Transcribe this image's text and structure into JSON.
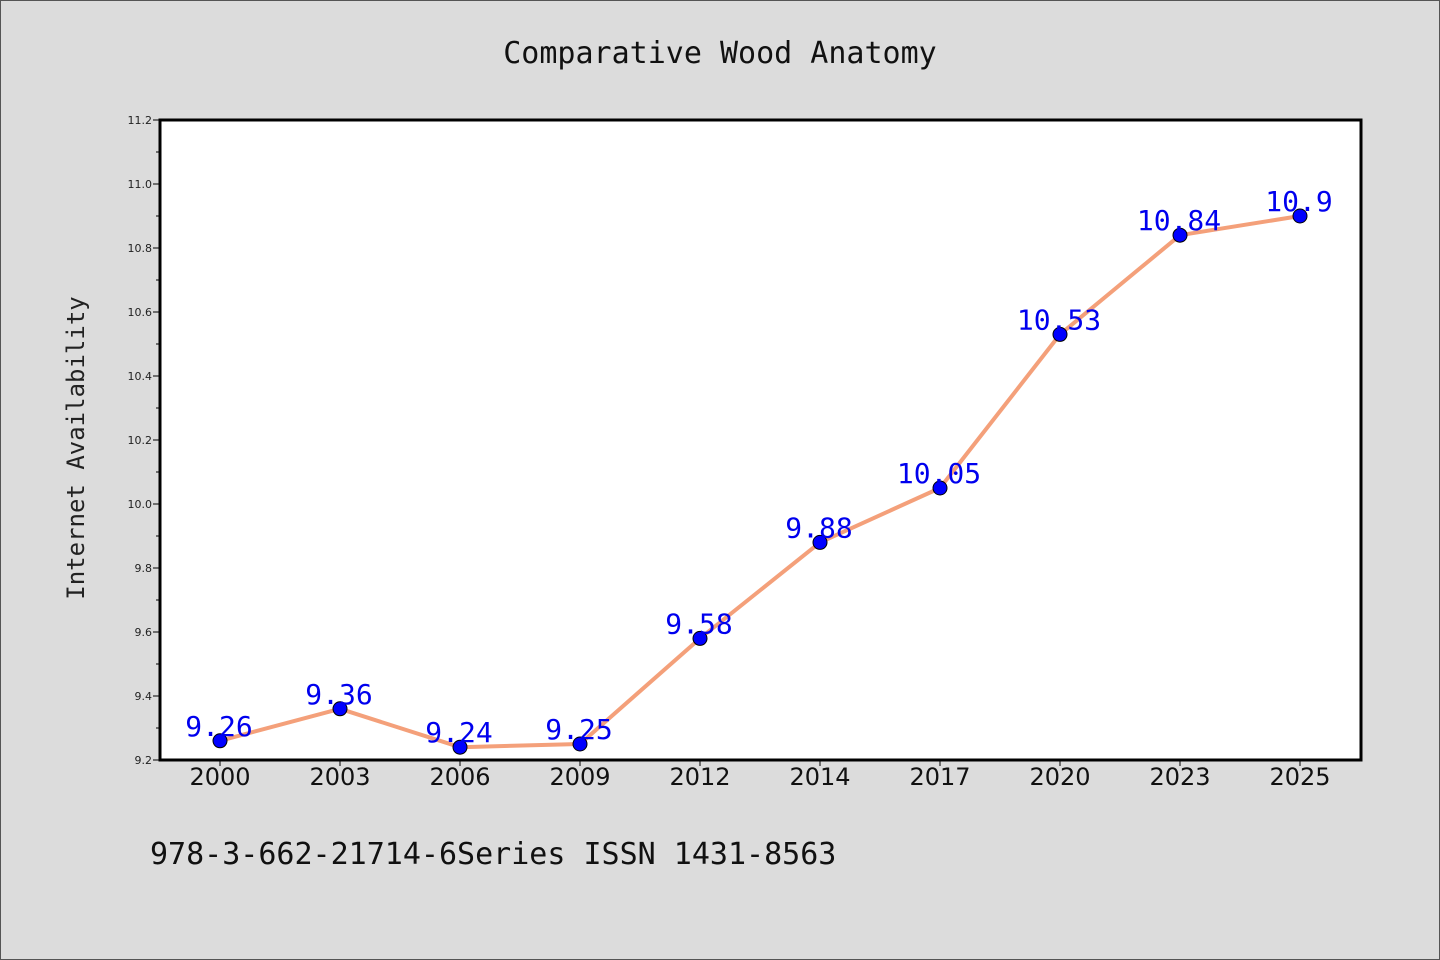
{
  "chart_data": {
    "type": "line",
    "title": "Comparative Wood Anatomy",
    "xlabel": "",
    "ylabel": "Internet Availability",
    "categories": [
      "2000",
      "2003",
      "2006",
      "2009",
      "2012",
      "2014",
      "2017",
      "2020",
      "2023",
      "2025"
    ],
    "series": [
      {
        "values": [
          9.26,
          9.36,
          9.24,
          9.25,
          9.58,
          9.88,
          10.05,
          10.53,
          10.84,
          10.9
        ],
        "data_labels": [
          "9.26",
          "9.36",
          "9.24",
          "9.25",
          "9.58",
          "9.88",
          "10.05",
          "10.53",
          "10.84",
          "10.9"
        ],
        "line_color": "#f4a07a",
        "marker_color": "#0000ff"
      }
    ],
    "ylim": [
      9.2,
      11.2
    ],
    "yticks": [
      "9.2",
      "9.4",
      "9.6",
      "9.8",
      "10.0",
      "10.2",
      "10.4",
      "10.6",
      "10.8",
      "11.0",
      "11.2"
    ],
    "grid": false,
    "legend": "none",
    "label_color": "#0000ee"
  },
  "footer": "978-3-662-21714-6Series ISSN 1431-8563"
}
